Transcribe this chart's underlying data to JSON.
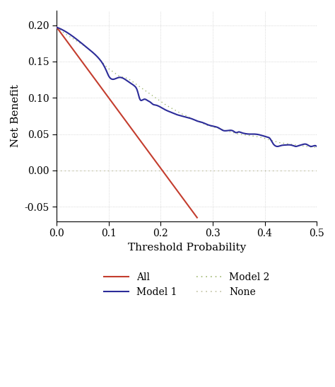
{
  "title": "",
  "xlabel": "Threshold Probability",
  "ylabel": "Net Benefit",
  "xlim": [
    0.0,
    0.5
  ],
  "ylim": [
    -0.07,
    0.22
  ],
  "xticks": [
    0.0,
    0.1,
    0.2,
    0.3,
    0.4,
    0.5
  ],
  "yticks": [
    -0.05,
    0.0,
    0.05,
    0.1,
    0.15,
    0.2
  ],
  "background_color": "#ffffff",
  "grid_color": "#999999",
  "all_color": "#c43d2e",
  "model1_color": "#2c2c99",
  "model2_color": "#a0b870",
  "none_color": "#c0c0a0",
  "all_line": {
    "x": [
      0.0,
      0.27
    ],
    "y": [
      0.197,
      -0.065
    ]
  },
  "none_line": {
    "x": [
      0.0,
      0.5
    ],
    "y": [
      0.0,
      0.0
    ]
  }
}
